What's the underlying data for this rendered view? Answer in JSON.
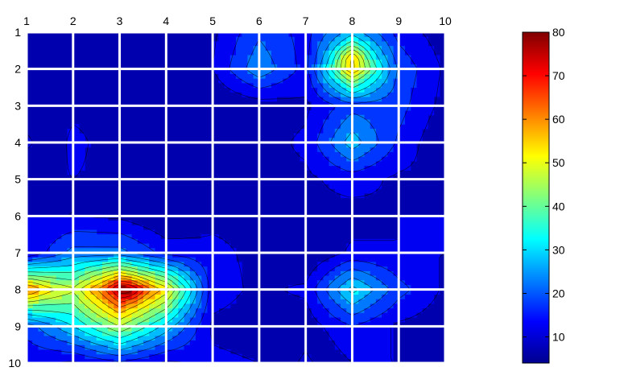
{
  "chart_data": {
    "type": "heatmap",
    "style": "filled-contour",
    "title": "",
    "xlabel": "",
    "ylabel": "",
    "x_tick_labels": [
      "1",
      "2",
      "3",
      "4",
      "5",
      "6",
      "7",
      "8",
      "9",
      "10"
    ],
    "y_tick_labels": [
      "1",
      "2",
      "3",
      "4",
      "5",
      "6",
      "7",
      "8",
      "9",
      "10"
    ],
    "x_range": [
      1,
      10
    ],
    "y_range": [
      1,
      10
    ],
    "y_direction": "top-to-bottom",
    "x_axis_position": "top",
    "grid": true,
    "grid_color": "#ffffff",
    "colormap": "jet",
    "colorbar": {
      "position": "right",
      "range": [
        4,
        80
      ],
      "ticks": [
        10,
        20,
        30,
        40,
        50,
        60,
        70,
        80
      ],
      "tick_labels": [
        "10",
        "20",
        "30",
        "40",
        "50",
        "60",
        "70",
        "80"
      ]
    },
    "contour_levels": [
      5,
      10,
      15,
      20,
      25,
      30,
      35,
      40,
      45,
      50,
      55,
      60,
      65,
      70,
      75
    ],
    "z_grid_estimated": [
      [
        9,
        10,
        9,
        7,
        9,
        19,
        13,
        28,
        13,
        7
      ],
      [
        9,
        8,
        5,
        6,
        10,
        24,
        13,
        53,
        19,
        9
      ],
      [
        8,
        9,
        9,
        5,
        5,
        7,
        9,
        18,
        17,
        8
      ],
      [
        4,
        11,
        8,
        6,
        5,
        8,
        11,
        28,
        14,
        5
      ],
      [
        9,
        10,
        9,
        5,
        7,
        9,
        9,
        12,
        9,
        9
      ],
      [
        10,
        10,
        9,
        5,
        9,
        9,
        9,
        8,
        10,
        10
      ],
      [
        10,
        22,
        22,
        13,
        11,
        9,
        5,
        11,
        10,
        10
      ],
      [
        57,
        46,
        73,
        53,
        12,
        9,
        11,
        32,
        17,
        9
      ],
      [
        17,
        30,
        45,
        28,
        9,
        8,
        7,
        15,
        9,
        7
      ],
      [
        11,
        9,
        14,
        9,
        11,
        10,
        4,
        10,
        10,
        8
      ]
    ],
    "peaks_estimated": [
      {
        "x": 3.2,
        "y": 8.0,
        "value": 78
      },
      {
        "x": 8.0,
        "y": 1.7,
        "value": 55
      },
      {
        "x": 1.0,
        "y": 8.0,
        "value": 62
      },
      {
        "x": 8.0,
        "y": 8.0,
        "value": 32
      }
    ]
  }
}
